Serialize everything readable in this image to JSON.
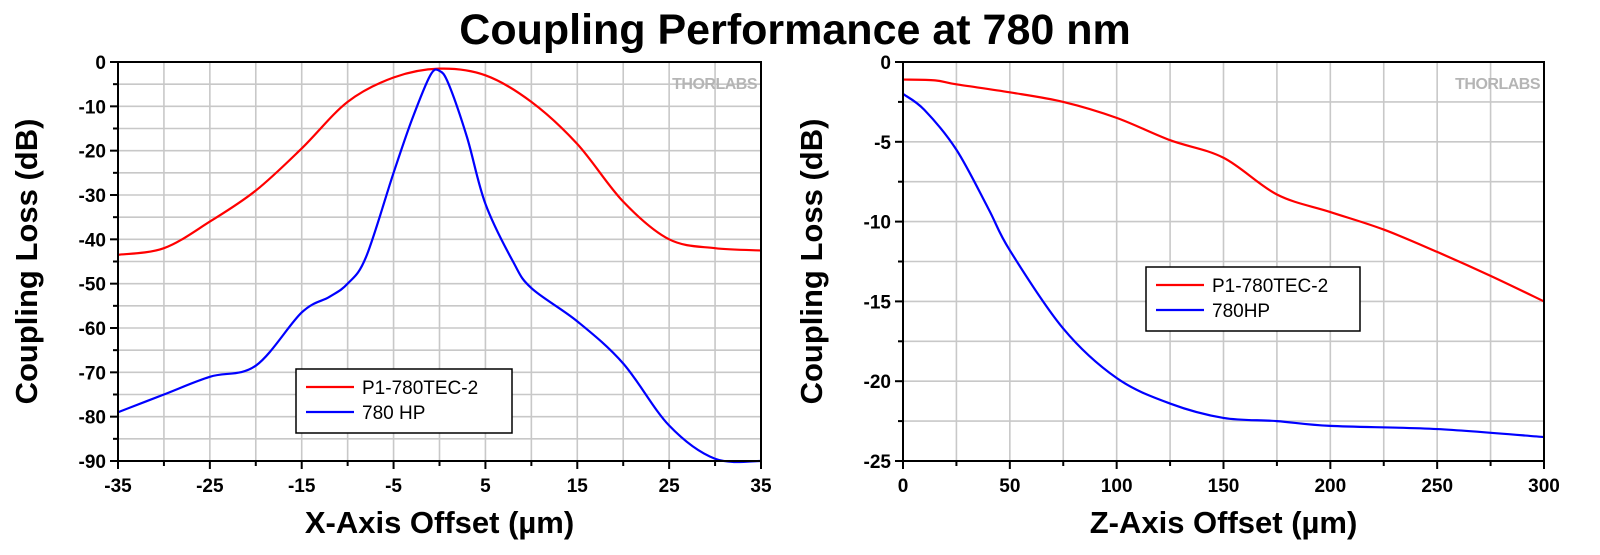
{
  "title": "Coupling Performance at 780 nm",
  "watermark": "THORLABS",
  "chart_data": [
    {
      "type": "line",
      "xlabel": "X-Axis Offset (µm)",
      "ylabel": "Coupling Loss (dB)",
      "xlim": [
        -35,
        35
      ],
      "ylim": [
        -90,
        0
      ],
      "xticks": [
        -35,
        -25,
        -15,
        -5,
        5,
        15,
        25,
        35
      ],
      "yticks": [
        0,
        -10,
        -20,
        -30,
        -40,
        -50,
        -60,
        -70,
        -80,
        -90
      ],
      "grid": true,
      "legend_position": "bottom-center",
      "series": [
        {
          "name": "P1-780TEC-2",
          "color": "#ff0000",
          "x": [
            -35,
            -30,
            -25,
            -20,
            -15,
            -10,
            -5,
            0,
            5,
            10,
            15,
            20,
            25,
            30,
            35
          ],
          "y": [
            -43.5,
            -42,
            -36,
            -29,
            -19.5,
            -9,
            -3.5,
            -1.5,
            -3,
            -9,
            -18.5,
            -31.5,
            -40,
            -42,
            -42.5
          ]
        },
        {
          "name": "780 HP",
          "color": "#0000ff",
          "x": [
            -35,
            -30,
            -25,
            -20,
            -15,
            -12,
            -10,
            -8,
            -5,
            -3,
            -1,
            0,
            1,
            3,
            5,
            8,
            10,
            15,
            20,
            25,
            30,
            35
          ],
          "y": [
            -79,
            -75,
            -71,
            -68.5,
            -56.5,
            -53,
            -50,
            -44,
            -25,
            -13,
            -3,
            -2,
            -5,
            -17,
            -32,
            -45,
            -51,
            -58.5,
            -68,
            -82,
            -89.5,
            -90
          ]
        }
      ]
    },
    {
      "type": "line",
      "xlabel": "Z-Axis Offset (µm)",
      "ylabel": "Coupling Loss (dB)",
      "xlim": [
        0,
        300
      ],
      "ylim": [
        -25,
        0
      ],
      "xticks": [
        0,
        50,
        100,
        150,
        200,
        250,
        300
      ],
      "yticks": [
        0,
        -5,
        -10,
        -15,
        -20,
        -25
      ],
      "grid": true,
      "legend_position": "center-right",
      "series": [
        {
          "name": "P1-780TEC-2",
          "color": "#ff0000",
          "x": [
            0,
            15,
            25,
            50,
            75,
            100,
            125,
            150,
            175,
            200,
            225,
            250,
            275,
            300
          ],
          "y": [
            -1.1,
            -1.15,
            -1.4,
            -1.9,
            -2.5,
            -3.5,
            -4.9,
            -6.0,
            -8.3,
            -9.4,
            -10.5,
            -11.9,
            -13.4,
            -15.0
          ]
        },
        {
          "name": "780HP",
          "color": "#0000ff",
          "x": [
            0,
            10,
            25,
            40,
            50,
            75,
            100,
            125,
            150,
            175,
            200,
            250,
            300
          ],
          "y": [
            -2,
            -3,
            -5.5,
            -9.2,
            -11.8,
            -16.7,
            -19.8,
            -21.4,
            -22.3,
            -22.5,
            -22.8,
            -23.0,
            -23.5
          ]
        }
      ]
    }
  ]
}
